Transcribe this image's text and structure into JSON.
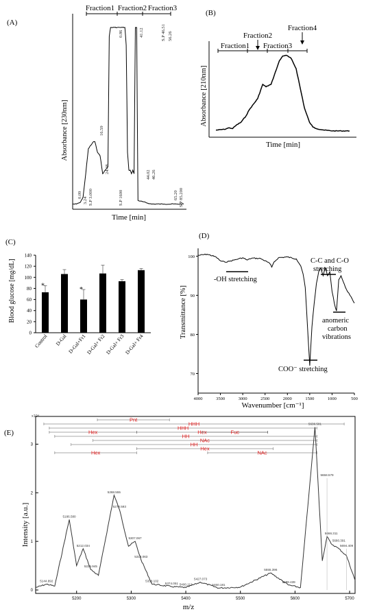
{
  "panels": {
    "A": {
      "label": "(A)",
      "ylabel": "Absorbance [230nm]",
      "xlabel": "Time [min]",
      "fractions": [
        "Fraction1",
        "Fraction2",
        "Fraction3"
      ],
      "peak_labels": [
        "0.09",
        "3.24",
        "S.P 3.000",
        "16.59",
        "24.48",
        "S.P 1600",
        "0.86",
        "41.12",
        "44.02",
        "46.26",
        "S.P 46.51",
        "56.26",
        "65.20",
        "S.P 85.200"
      ]
    },
    "B": {
      "label": "(B)",
      "ylabel": "Absorbance [210nm]",
      "xlabel": "Time [min]",
      "fractions": [
        "Fraction1",
        "Fraction2",
        "Fraction3",
        "Fraction4"
      ]
    },
    "C": {
      "label": "(C)",
      "star": "*"
    },
    "D": {
      "label": "(D)",
      "ylabel": "Transmittance [%]",
      "xlabel": "Wavenumber [cm⁻¹]",
      "annotations": {
        "oh": "-OH stretching",
        "cc": "C-C and C-O",
        "cc2": "stretching",
        "anom1": "anomeric",
        "anom2": "carbon",
        "anom3": "vibrations",
        "coo": "COO⁻ stretching"
      }
    },
    "E": {
      "label": "(E)",
      "ylabel": "Intensity [a.u.]",
      "xlabel": "m/z",
      "exponent": "x10⁴",
      "spans": [
        "Pnt",
        "HHH",
        "HHH",
        "Hex",
        "Hex",
        "Fuc",
        "HH",
        "NAc",
        "HH",
        "Hex",
        "Hex",
        "NAc"
      ],
      "peak_labels": [
        "5144.892",
        "5186.580",
        "5212.034",
        "5225.945",
        "5268.555",
        "5278.593",
        "5307.067",
        "5318.063",
        "5338.102",
        "5374.051",
        "5400.112",
        "5427.073",
        "5460.181",
        "5555.396",
        "5588.439",
        "5636.581",
        "5658.579",
        "5666.311",
        "5680.391",
        "5694.409"
      ]
    }
  },
  "chart_data": [
    {
      "type": "line",
      "panel": "A",
      "title": "",
      "xlabel": "Time [min]",
      "ylabel": "Absorbance [230nm]",
      "x": [
        0,
        3,
        6,
        8,
        10,
        12,
        14,
        16,
        17,
        19,
        21,
        23,
        25,
        27,
        28,
        29,
        30,
        32,
        34,
        36,
        38,
        40,
        41,
        42,
        43,
        44,
        45,
        46,
        47,
        48,
        49,
        50,
        60,
        70,
        80,
        85
      ],
      "y": [
        0.01,
        0.01,
        0.02,
        0.05,
        0.18,
        0.32,
        0.34,
        0.36,
        0.36,
        0.3,
        0.28,
        0.18,
        0.2,
        0.22,
        0.95,
        1.0,
        1.0,
        1.0,
        1.0,
        1.0,
        1.0,
        1.0,
        0.9,
        0.3,
        0.2,
        0.2,
        0.18,
        0.2,
        0.18,
        1.0,
        1.0,
        0.03,
        0.01,
        0.01,
        0.01,
        0.01
      ],
      "fractions": [
        "Fraction1",
        "Fraction2",
        "Fraction3"
      ]
    },
    {
      "type": "line",
      "panel": "B",
      "title": "",
      "xlabel": "Time [min]",
      "ylabel": "Absorbance [210nm]",
      "x": [
        0,
        5,
        8,
        10,
        12,
        15,
        18,
        20,
        25,
        28,
        30,
        33,
        35,
        38,
        40,
        42,
        45,
        48,
        50,
        53,
        56,
        58,
        60,
        65,
        70,
        75,
        80
      ],
      "y": [
        0.02,
        0.03,
        0.05,
        0.04,
        0.08,
        0.12,
        0.2,
        0.28,
        0.42,
        0.6,
        0.57,
        0.6,
        0.72,
        0.9,
        0.96,
        0.97,
        0.93,
        0.8,
        0.6,
        0.3,
        0.12,
        0.06,
        0.04,
        0.02,
        0.01,
        0.01,
        0.01
      ],
      "fractions": [
        "Fraction1",
        "Fraction2",
        "Fraction3",
        "Fraction4"
      ]
    },
    {
      "type": "bar",
      "panel": "C",
      "title": "",
      "xlabel": "",
      "ylabel": "Blood glucose [mg/dL]",
      "categories": [
        "Control",
        "D-Gal",
        "D-Gal+Fr1",
        "D-Gal+ Fr2",
        "D-Gal+ Fr3",
        "D-Gal+ Fr4"
      ],
      "values": [
        73,
        106,
        60,
        107,
        93,
        113
      ],
      "errors": [
        12,
        8,
        18,
        15,
        3,
        3
      ],
      "significance": [
        "*",
        "",
        "*",
        "",
        "",
        ""
      ],
      "ylim": [
        0,
        140
      ],
      "yticks": [
        0,
        20,
        40,
        60,
        80,
        100,
        120,
        140
      ]
    },
    {
      "type": "line",
      "panel": "D",
      "title": "",
      "xlabel": "Wavenumber [cm⁻¹]",
      "ylabel": "Transmittance [%]",
      "x": [
        4000,
        3800,
        3600,
        3500,
        3400,
        3300,
        3200,
        3100,
        3000,
        2900,
        2800,
        2600,
        2400,
        2350,
        2300,
        2200,
        2000,
        1800,
        1700,
        1650,
        1600,
        1550,
        1500,
        1450,
        1400,
        1350,
        1300,
        1250,
        1200,
        1150,
        1100,
        1050,
        1000,
        950,
        900,
        850,
        800,
        700,
        600,
        500
      ],
      "y": [
        100.2,
        100.5,
        99.8,
        98.8,
        98.5,
        98.7,
        99.0,
        99.3,
        99.6,
        99.0,
        99.5,
        99.4,
        98.2,
        97.2,
        98.5,
        99.6,
        99.8,
        99.3,
        97.5,
        95.5,
        92,
        82,
        72,
        82,
        88,
        93,
        96,
        97,
        95,
        97,
        95,
        96,
        91,
        88,
        86,
        94,
        95,
        92,
        90,
        88
      ],
      "xlim": [
        4000,
        500
      ],
      "ylim": [
        65,
        102
      ],
      "xticks": [
        4000,
        3500,
        3000,
        2500,
        2000,
        1500,
        1000,
        500
      ],
      "yticks": [
        70,
        80,
        90,
        100
      ]
    },
    {
      "type": "line",
      "panel": "E",
      "title": "",
      "xlabel": "m/z",
      "ylabel": "Intensity [a.u.]",
      "x": [
        5125,
        5144.9,
        5160,
        5186.6,
        5200,
        5212,
        5225.9,
        5240,
        5268.6,
        5278.6,
        5295,
        5307.1,
        5318.1,
        5338.1,
        5374.1,
        5400.1,
        5427.1,
        5460.2,
        5500,
        5555.4,
        5588.4,
        5610,
        5636.6,
        5650,
        5658.6,
        5666.3,
        5680.4,
        5694.4,
        5710
      ],
      "y": [
        0.05,
        0.12,
        0.08,
        1.45,
        0.5,
        0.85,
        0.42,
        0.3,
        1.95,
        1.65,
        0.9,
        1.0,
        0.62,
        0.12,
        0.07,
        0.05,
        0.16,
        0.04,
        0.06,
        0.35,
        0.1,
        0.05,
        3.35,
        0.6,
        1.1,
        0.95,
        0.85,
        0.7,
        0.2
      ],
      "xlim": [
        5125,
        5710
      ],
      "ylim": [
        0,
        3.5
      ],
      "xticks": [
        5200,
        5300,
        5400,
        5500,
        5600,
        5700
      ],
      "yticks": [
        0,
        1,
        2,
        3
      ]
    }
  ]
}
